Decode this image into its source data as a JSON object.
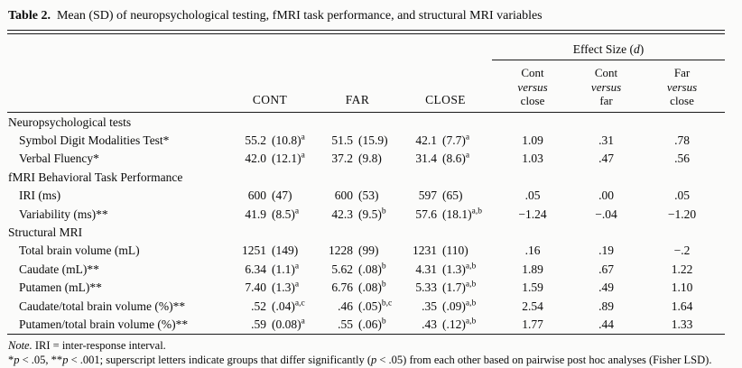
{
  "title": {
    "label": "Table 2.",
    "text": "Mean (SD) of neuropsychological testing, fMRI task performance, and structural MRI variables"
  },
  "header": {
    "effect_size": {
      "pre": "Effect Size (",
      "stat": "d",
      "post": ")"
    },
    "groups": [
      "CONT",
      "FAR",
      "CLOSE"
    ],
    "contrast_columns": [
      {
        "lines": [
          "Cont",
          "versus",
          "close"
        ]
      },
      {
        "lines": [
          "Cont",
          "versus",
          "far"
        ]
      },
      {
        "lines": [
          "Far",
          "versus",
          "close"
        ]
      }
    ]
  },
  "sections": [
    {
      "heading": "Neuropsychological tests",
      "rows": [
        {
          "label": "Symbol Digit Modalities Test*",
          "cont": {
            "m": "55.2",
            "sd": "(10.8)",
            "sup": "a"
          },
          "far": {
            "m": "51.5",
            "sd": "(15.9)",
            "sup": ""
          },
          "close": {
            "m": "42.1",
            "sd": "(7.7)",
            "sup": "a"
          },
          "d": [
            "1.09",
            ".31",
            ".78"
          ]
        },
        {
          "label": "Verbal Fluency*",
          "cont": {
            "m": "42.0",
            "sd": "(12.1)",
            "sup": "a"
          },
          "far": {
            "m": "37.2",
            "sd": "(9.8)",
            "sup": ""
          },
          "close": {
            "m": "31.4",
            "sd": "(8.6)",
            "sup": "a"
          },
          "d": [
            "1.03",
            ".47",
            ".56"
          ]
        }
      ]
    },
    {
      "heading": "fMRI Behavioral Task Performance",
      "rows": [
        {
          "label": "IRI (ms)",
          "cont": {
            "m": "600",
            "sd": "(47)",
            "sup": ""
          },
          "far": {
            "m": "600",
            "sd": "(53)",
            "sup": ""
          },
          "close": {
            "m": "597",
            "sd": "(65)",
            "sup": ""
          },
          "d": [
            ".05",
            ".00",
            ".05"
          ]
        },
        {
          "label": "Variability (ms)**",
          "cont": {
            "m": "41.9",
            "sd": "(8.5)",
            "sup": "a"
          },
          "far": {
            "m": "42.3",
            "sd": "(9.5)",
            "sup": "b"
          },
          "close": {
            "m": "57.6",
            "sd": "(18.1)",
            "sup": "a,b"
          },
          "d": [
            "−1.24",
            "−.04",
            "−1.20"
          ]
        }
      ]
    },
    {
      "heading": "Structural MRI",
      "rows": [
        {
          "label": "Total brain volume (mL)",
          "cont": {
            "m": "1251",
            "sd": "(149)",
            "sup": ""
          },
          "far": {
            "m": "1228",
            "sd": "(99)",
            "sup": ""
          },
          "close": {
            "m": "1231",
            "sd": "(110)",
            "sup": ""
          },
          "d": [
            ".16",
            ".19",
            "−.2"
          ]
        },
        {
          "label": "Caudate (mL)**",
          "cont": {
            "m": "6.34",
            "sd": "(1.1)",
            "sup": "a"
          },
          "far": {
            "m": "5.62",
            "sd": "(.08)",
            "sup": "b"
          },
          "close": {
            "m": "4.31",
            "sd": "(1.3)",
            "sup": "a,b"
          },
          "d": [
            "1.89",
            ".67",
            "1.22"
          ]
        },
        {
          "label": "Putamen (mL)**",
          "cont": {
            "m": "7.40",
            "sd": "(1.3)",
            "sup": "a"
          },
          "far": {
            "m": "6.76",
            "sd": "(.08)",
            "sup": "b"
          },
          "close": {
            "m": "5.33",
            "sd": "(1.7)",
            "sup": "a,b"
          },
          "d": [
            "1.59",
            ".49",
            "1.10"
          ]
        },
        {
          "label": "Caudate/total brain volume (%)**",
          "cont": {
            "m": ".52",
            "sd": "(.04)",
            "sup": "a,c"
          },
          "far": {
            "m": ".46",
            "sd": "(.05)",
            "sup": "b,c"
          },
          "close": {
            "m": ".35",
            "sd": "(.09)",
            "sup": "a,b"
          },
          "d": [
            "2.54",
            ".89",
            "1.64"
          ]
        },
        {
          "label": "Putamen/total brain volume (%)**",
          "cont": {
            "m": ".59",
            "sd": "(0.08)",
            "sup": "a"
          },
          "far": {
            "m": ".55",
            "sd": "(.06)",
            "sup": "b"
          },
          "close": {
            "m": ".43",
            "sd": "(.12)",
            "sup": "a,b"
          },
          "d": [
            "1.77",
            ".44",
            "1.33"
          ]
        }
      ]
    }
  ],
  "notes": [
    {
      "segments": [
        {
          "text": "Note.",
          "italic": true
        },
        {
          "text": " IRI = inter-response interval.",
          "italic": false
        }
      ]
    },
    {
      "segments": [
        {
          "text": "*",
          "italic": false
        },
        {
          "text": "p",
          "italic": true
        },
        {
          "text": " < .05, **",
          "italic": false
        },
        {
          "text": "p",
          "italic": true
        },
        {
          "text": " < .001; superscript letters indicate groups that differ significantly (",
          "italic": false
        },
        {
          "text": "p",
          "italic": true
        },
        {
          "text": " < .05) from each other based on pairwise post hoc analyses (Fisher LSD).",
          "italic": false
        }
      ]
    }
  ]
}
